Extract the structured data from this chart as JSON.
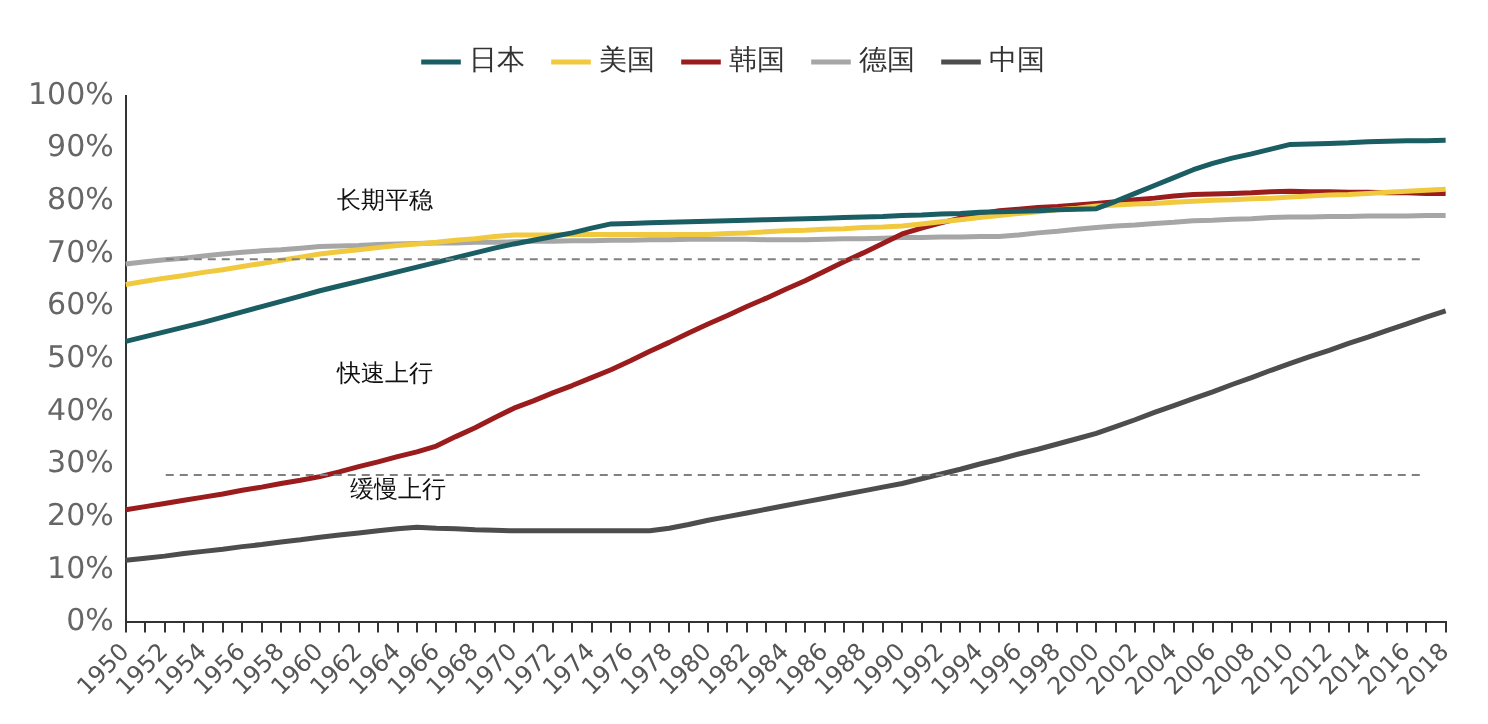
{
  "chart_data": {
    "type": "line",
    "categories": [
      "1950",
      null,
      "1952",
      null,
      "1954",
      null,
      "1956",
      null,
      "1958",
      null,
      "1960",
      null,
      "1962",
      null,
      "1964",
      null,
      "1966",
      null,
      "1968",
      null,
      "1970",
      null,
      "1972",
      null,
      "1974",
      null,
      "1976",
      null,
      "1978",
      null,
      "1980",
      null,
      "1982",
      null,
      "1984",
      null,
      "1986",
      null,
      "1988",
      null,
      "1990",
      null,
      "1992",
      null,
      "1994",
      null,
      "1996",
      null,
      "1998",
      null,
      "2000",
      null,
      "2002",
      null,
      "2004",
      null,
      "2006",
      null,
      "2008",
      null,
      "2010",
      null,
      "2012",
      null,
      "2014",
      null,
      "2016",
      null,
      "2018"
    ],
    "series": [
      {
        "name": "日本",
        "color": "#1a5e63",
        "values": [
          53.4,
          54.3,
          55.2,
          56.1,
          57.0,
          58.0,
          59.0,
          60.0,
          61.0,
          62.0,
          63.0,
          63.9,
          64.8,
          65.7,
          66.6,
          67.5,
          68.4,
          69.3,
          70.2,
          71.1,
          71.9,
          72.6,
          73.3,
          74.0,
          74.9,
          75.7,
          75.8,
          75.9,
          76.0,
          76.1,
          76.2,
          76.3,
          76.4,
          76.5,
          76.6,
          76.7,
          76.8,
          76.9,
          77.0,
          77.1,
          77.3,
          77.4,
          77.6,
          77.7,
          77.9,
          78.0,
          78.1,
          78.2,
          78.4,
          78.5,
          78.6,
          80.0,
          81.5,
          83.0,
          84.5,
          86.0,
          87.2,
          88.2,
          89.0,
          89.9,
          90.8,
          90.9,
          91.0,
          91.1,
          91.3,
          91.4,
          91.5,
          91.5,
          91.6
        ]
      },
      {
        "name": "美国",
        "color": "#f0c93e",
        "values": [
          64.2,
          64.8,
          65.4,
          65.9,
          66.5,
          67.0,
          67.6,
          68.2,
          68.8,
          69.4,
          70.0,
          70.4,
          70.8,
          71.2,
          71.6,
          71.9,
          72.2,
          72.6,
          72.9,
          73.3,
          73.6,
          73.6,
          73.6,
          73.7,
          73.7,
          73.7,
          73.7,
          73.7,
          73.7,
          73.7,
          73.7,
          73.9,
          74.0,
          74.2,
          74.4,
          74.5,
          74.7,
          74.8,
          75.0,
          75.1,
          75.3,
          75.7,
          76.1,
          76.5,
          76.9,
          77.3,
          77.7,
          78.0,
          78.4,
          78.7,
          79.1,
          79.3,
          79.5,
          79.6,
          79.8,
          80.0,
          80.2,
          80.3,
          80.5,
          80.6,
          80.8,
          81.0,
          81.2,
          81.3,
          81.5,
          81.7,
          81.9,
          82.1,
          82.3
        ]
      },
      {
        "name": "韩国",
        "color": "#9b1c1c",
        "values": [
          21.4,
          22.0,
          22.6,
          23.2,
          23.8,
          24.4,
          25.1,
          25.7,
          26.4,
          27.0,
          27.7,
          28.6,
          29.6,
          30.5,
          31.5,
          32.4,
          33.5,
          35.3,
          37.0,
          38.9,
          40.7,
          42.1,
          43.6,
          45.0,
          46.5,
          48.0,
          49.7,
          51.5,
          53.2,
          55.0,
          56.7,
          58.3,
          60.0,
          61.6,
          63.3,
          64.9,
          66.7,
          68.5,
          70.2,
          72.0,
          73.8,
          74.9,
          75.9,
          76.8,
          77.6,
          78.2,
          78.5,
          78.8,
          79.0,
          79.3,
          79.6,
          79.9,
          80.3,
          80.6,
          81.0,
          81.3,
          81.4,
          81.5,
          81.6,
          81.8,
          81.9,
          81.8,
          81.8,
          81.7,
          81.7,
          81.6,
          81.6,
          81.5,
          81.5
        ]
      },
      {
        "name": "德国",
        "color": "#a6a6a6",
        "values": [
          68.1,
          68.5,
          68.9,
          69.2,
          69.6,
          70.0,
          70.3,
          70.6,
          70.8,
          71.1,
          71.4,
          71.5,
          71.6,
          71.8,
          71.9,
          72.0,
          72.1,
          72.1,
          72.2,
          72.2,
          72.3,
          72.4,
          72.4,
          72.5,
          72.5,
          72.6,
          72.6,
          72.7,
          72.7,
          72.8,
          72.8,
          72.8,
          72.8,
          72.7,
          72.7,
          72.7,
          72.8,
          72.9,
          72.9,
          73.0,
          73.1,
          73.1,
          73.2,
          73.2,
          73.3,
          73.3,
          73.6,
          74.0,
          74.3,
          74.7,
          75.0,
          75.3,
          75.5,
          75.8,
          76.0,
          76.3,
          76.4,
          76.6,
          76.7,
          76.9,
          77.0,
          77.0,
          77.1,
          77.1,
          77.2,
          77.2,
          77.2,
          77.3,
          77.3
        ]
      },
      {
        "name": "中国",
        "color": "#4d4d4d",
        "values": [
          11.8,
          12.2,
          12.6,
          13.1,
          13.5,
          13.9,
          14.4,
          14.8,
          15.3,
          15.7,
          16.2,
          16.6,
          17.0,
          17.4,
          17.8,
          18.1,
          17.9,
          17.8,
          17.6,
          17.5,
          17.4,
          17.4,
          17.4,
          17.4,
          17.4,
          17.4,
          17.4,
          17.4,
          17.9,
          18.6,
          19.4,
          20.1,
          20.8,
          21.5,
          22.2,
          22.9,
          23.6,
          24.3,
          25.0,
          25.7,
          26.4,
          27.3,
          28.2,
          29.1,
          30.1,
          31.0,
          32.0,
          32.9,
          33.9,
          34.9,
          35.9,
          37.2,
          38.5,
          39.9,
          41.2,
          42.5,
          43.8,
          45.2,
          46.5,
          47.9,
          49.2,
          50.5,
          51.7,
          53.0,
          54.2,
          55.5,
          56.7,
          58.0,
          59.2
        ]
      }
    ],
    "ylim": [
      0,
      100
    ],
    "yticks": [
      {
        "value": 0,
        "label": "0%"
      },
      {
        "value": 10,
        "label": "10%"
      },
      {
        "value": 20,
        "label": "20%"
      },
      {
        "value": 30,
        "label": "30%"
      },
      {
        "value": 40,
        "label": "40%"
      },
      {
        "value": 50,
        "label": "50%"
      },
      {
        "value": 60,
        "label": "60%"
      },
      {
        "value": 70,
        "label": "70%"
      },
      {
        "value": 80,
        "label": "80%"
      },
      {
        "value": 90,
        "label": "90%"
      },
      {
        "value": 100,
        "label": "100%"
      }
    ],
    "ref_lines": [
      {
        "axis": "y",
        "value": 69,
        "color": "#808080",
        "line_style": "dashed"
      },
      {
        "axis": "y",
        "value": 28,
        "color": "#808080",
        "line_style": "dashed"
      }
    ],
    "annotations": [
      "长期平稳",
      "快速上行",
      "缓慢上行"
    ],
    "legend": "top",
    "grid": false,
    "marker": "none",
    "line_style": "solid"
  }
}
